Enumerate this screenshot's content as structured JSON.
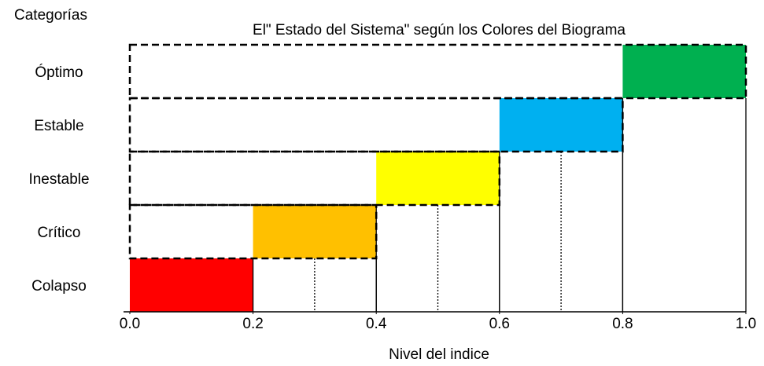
{
  "chart_data": {
    "type": "range_bar",
    "title": "El\" Estado del Sistema\" según los Colores del Biograma",
    "y_label": "Categorías",
    "x_label": "Nivel del indice",
    "categories": [
      "Colapso",
      "Crítico",
      "Inestable",
      "Estable",
      "Óptimo"
    ],
    "starts": [
      0,
      0.2,
      0.4,
      0.6,
      0.8
    ],
    "ends": [
      0.2,
      0.4,
      0.6,
      0.8,
      1.0
    ],
    "colors": [
      "#ff0000",
      "#ffc000",
      "#ffff00",
      "#00b0f0",
      "#00b050"
    ],
    "xlim": [
      0,
      1
    ],
    "xticks": [
      {
        "value": 0,
        "label": "0.0"
      },
      {
        "value": 0.2,
        "label": "0.2"
      },
      {
        "value": 0.4,
        "label": "0.4"
      },
      {
        "value": 0.6,
        "label": "0.6"
      },
      {
        "value": 0.8,
        "label": "0.8"
      },
      {
        "value": 1,
        "label": "1.0"
      }
    ]
  }
}
